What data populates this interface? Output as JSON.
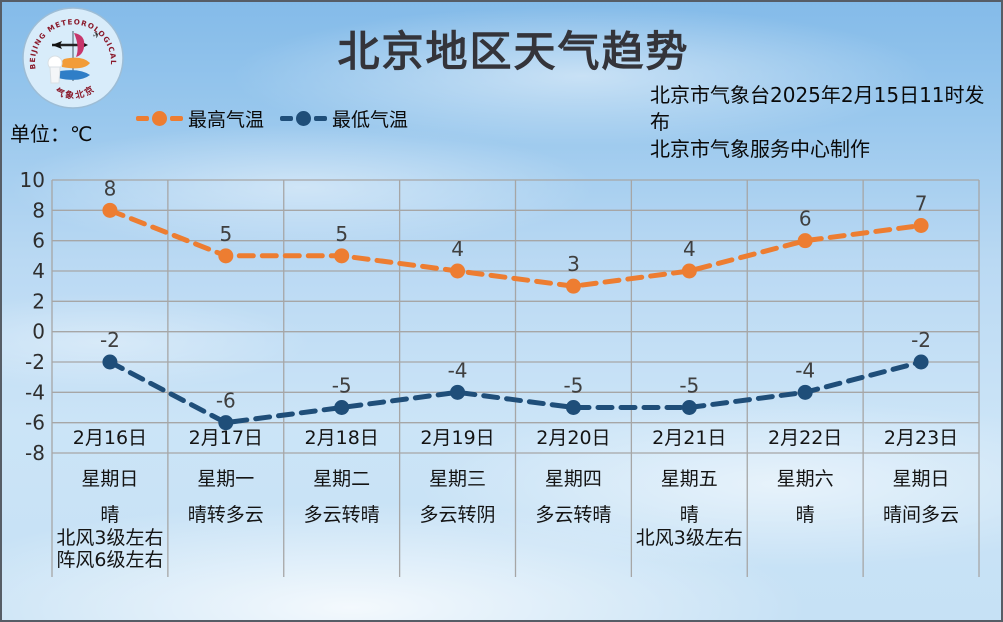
{
  "header": {
    "title": "北京地区天气趋势",
    "unit_label": "单位：℃",
    "issued_line1": "北京市气象台2025年2月15日11时发布",
    "issued_line2": "北京市气象服务中心制作",
    "logo": {
      "name": "beijing-meteorological-service-logo",
      "ring_text": "BEIJING METEOROLOGICAL SERVICE",
      "bottom_text": "气象北京"
    }
  },
  "legend": {
    "items": [
      {
        "label": "最高气温",
        "color": "#ED7D31"
      },
      {
        "label": "最低气温",
        "color": "#1F4E79"
      }
    ]
  },
  "chart_data": {
    "type": "line",
    "style": "dashed-with-markers",
    "title": "北京地区天气趋势",
    "ylabel": "℃",
    "ylim": [
      -8,
      10
    ],
    "ytick_step": 2,
    "yticks": [
      10,
      8,
      6,
      4,
      2,
      0,
      -2,
      -4,
      -6,
      -8
    ],
    "grid": true,
    "legend_position": "top-left",
    "categories": [
      "2月16日",
      "2月17日",
      "2月18日",
      "2月19日",
      "2月20日",
      "2月21日",
      "2月22日",
      "2月23日"
    ],
    "series": [
      {
        "name": "最高气温",
        "color": "#ED7D31",
        "values": [
          8,
          5,
          5,
          4,
          3,
          4,
          6,
          7
        ]
      },
      {
        "name": "最低气温",
        "color": "#1F4E79",
        "values": [
          -2,
          -6,
          -5,
          -4,
          -5,
          -5,
          -4,
          -2
        ]
      }
    ]
  },
  "days": [
    {
      "date": "2月16日",
      "weekday": "星期日",
      "weather": "晴",
      "wind": [
        "北风3级左右",
        "阵风6级左右"
      ]
    },
    {
      "date": "2月17日",
      "weekday": "星期一",
      "weather": "晴转多云",
      "wind": []
    },
    {
      "date": "2月18日",
      "weekday": "星期二",
      "weather": "多云转晴",
      "wind": []
    },
    {
      "date": "2月19日",
      "weekday": "星期三",
      "weather": "多云转阴",
      "wind": []
    },
    {
      "date": "2月20日",
      "weekday": "星期四",
      "weather": "多云转晴",
      "wind": []
    },
    {
      "date": "2月21日",
      "weekday": "星期五",
      "weather": "晴",
      "wind": [
        "北风3级左右"
      ]
    },
    {
      "date": "2月22日",
      "weekday": "星期六",
      "weather": "晴",
      "wind": []
    },
    {
      "date": "2月23日",
      "weekday": "星期日",
      "weather": "晴间多云",
      "wind": []
    }
  ],
  "colors": {
    "high_series": "#ED7D31",
    "low_series": "#1F4E79",
    "gridline": "#A6A6A6",
    "text": "#141414",
    "data_label": "#3f3f3f",
    "sky_top": "#84BBE9",
    "sky_bottom": "#C6E1F5"
  }
}
